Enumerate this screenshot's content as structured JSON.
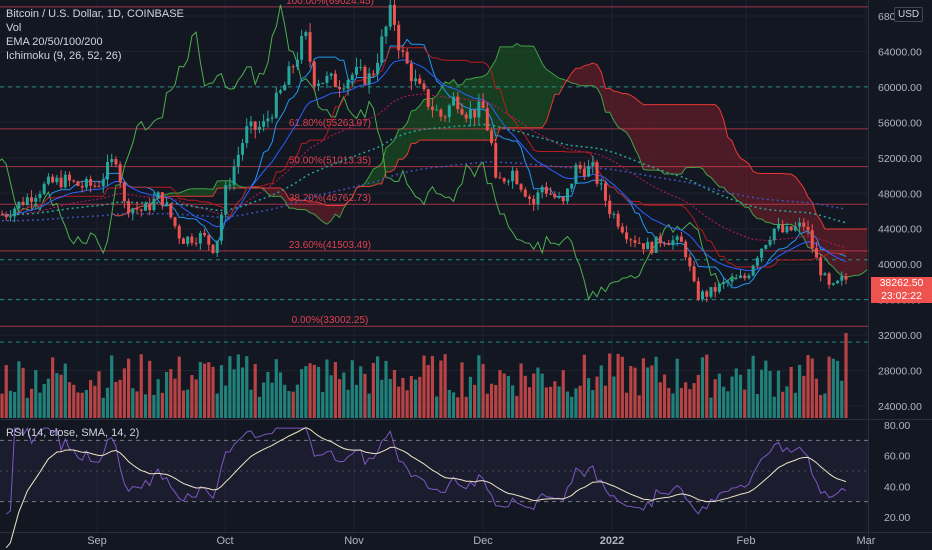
{
  "header": {
    "title": "Bitcoin / U.S. Dollar, 1D, COINBASE",
    "vol_label": "Vol",
    "ema_label": "EMA 20/50/100/200",
    "ichimoku_label": "Ichimoku (9, 26, 52, 26)",
    "rsi_label": "RSI (14, close, SMA, 14, 2)"
  },
  "currency_badge": "USD",
  "last_price": {
    "value": "38262.50",
    "countdown": "23:02:22"
  },
  "colors": {
    "background": "#131722",
    "up": "#26a69a",
    "down": "#ef5350",
    "rsi_line": "#7e57c2",
    "rsi_ma": "#f0e6c8",
    "ema_fast": "#2962ff",
    "ema_mid": "#c2185b",
    "ema_slow": "#26a69a",
    "ema_200": "#3f51b5",
    "fib": "#e04050",
    "cloud_bull": "#1b5e20",
    "cloud_bear": "#7b1f2a"
  },
  "chart_data": [
    {
      "type": "candlestick",
      "title": "Bitcoin / U.S. Dollar, 1D, COINBASE",
      "xlabel": "",
      "ylabel": "",
      "x_ticks": [
        "Sep",
        "Oct",
        "Nov",
        "Dec",
        "2022",
        "Feb",
        "Mar"
      ],
      "y_ticks": [
        "68000.00",
        "64000.00",
        "60000.00",
        "56000.00",
        "52000.00",
        "48000.00",
        "44000.00",
        "40000.00",
        "36000.00",
        "32000.00",
        "28000.00",
        "24000.00"
      ],
      "ylim": [
        22600,
        68400
      ],
      "grid": true,
      "price_path": [
        [
          "Aug 10",
          45600
        ],
        [
          "Aug 14",
          47000
        ],
        [
          "Aug 20",
          49000
        ],
        [
          "Aug 24",
          49500
        ],
        [
          "Aug 28",
          48800
        ],
        [
          "Sep 1",
          48900
        ],
        [
          "Sep 6",
          52500
        ],
        [
          "Sep 7",
          46800
        ],
        [
          "Sep 12",
          46000
        ],
        [
          "Sep 16",
          47800
        ],
        [
          "Sep 21",
          42800
        ],
        [
          "Sep 26",
          43200
        ],
        [
          "Sep 29",
          41600
        ],
        [
          "Oct 1",
          48000
        ],
        [
          "Oct 6",
          55000
        ],
        [
          "Oct 10",
          55500
        ],
        [
          "Oct 15",
          60000
        ],
        [
          "Oct 20",
          65800
        ],
        [
          "Oct 22",
          61000
        ],
        [
          "Oct 28",
          60500
        ],
        [
          "Nov 1",
          61500
        ],
        [
          "Nov 5",
          61000
        ],
        [
          "Nov 10",
          68800
        ],
        [
          "Nov 12",
          64000
        ],
        [
          "Nov 16",
          60000
        ],
        [
          "Nov 19",
          58000
        ],
        [
          "Nov 22",
          56500
        ],
        [
          "Nov 25",
          58900
        ],
        [
          "Nov 28",
          57000
        ],
        [
          "Dec 1",
          57500
        ],
        [
          "Dec 3",
          53500
        ],
        [
          "Dec 4",
          49000
        ],
        [
          "Dec 8",
          50500
        ],
        [
          "Dec 13",
          46800
        ],
        [
          "Dec 15",
          48800
        ],
        [
          "Dec 20",
          46700
        ],
        [
          "Dec 23",
          50800
        ],
        [
          "Dec 27",
          50700
        ],
        [
          "Dec 31",
          46200
        ],
        [
          "Jan 5",
          43200
        ],
        [
          "Jan 10",
          41800
        ],
        [
          "Jan 13",
          43000
        ],
        [
          "Jan 18",
          42200
        ],
        [
          "Jan 21",
          36400
        ],
        [
          "Jan 24",
          36700
        ],
        [
          "Jan 28",
          37900
        ],
        [
          "Feb 1",
          38500
        ],
        [
          "Feb 4",
          41500
        ],
        [
          "Feb 8",
          44200
        ],
        [
          "Feb 10",
          43500
        ],
        [
          "Feb 15",
          44500
        ],
        [
          "Feb 18",
          40000
        ],
        [
          "Feb 21",
          37000
        ],
        [
          "Feb 24",
          38300
        ],
        [
          "Feb 25",
          38262.5
        ]
      ],
      "fibonacci": [
        {
          "label": "100.00%(69024.45)",
          "value": 69024.45
        },
        {
          "label": "61.80%(55263.97)",
          "value": 55263.97
        },
        {
          "label": "50.00%(51013.35)",
          "value": 51013.35
        },
        {
          "label": "38.20%(46762.73)",
          "value": 46762.73
        },
        {
          "label": "23.60%(41503.49)",
          "value": 41503.49
        },
        {
          "label": "0.00%(33002.25)",
          "value": 33002.25
        }
      ],
      "last_value": 38262.5
    },
    {
      "type": "line",
      "title": "RSI (14, close, SMA, 14, 2)",
      "y_ticks": [
        "80.00",
        "60.00",
        "40.00",
        "20.00"
      ],
      "ylim": [
        14,
        84
      ],
      "band": [
        30,
        70
      ],
      "series": []
    }
  ]
}
